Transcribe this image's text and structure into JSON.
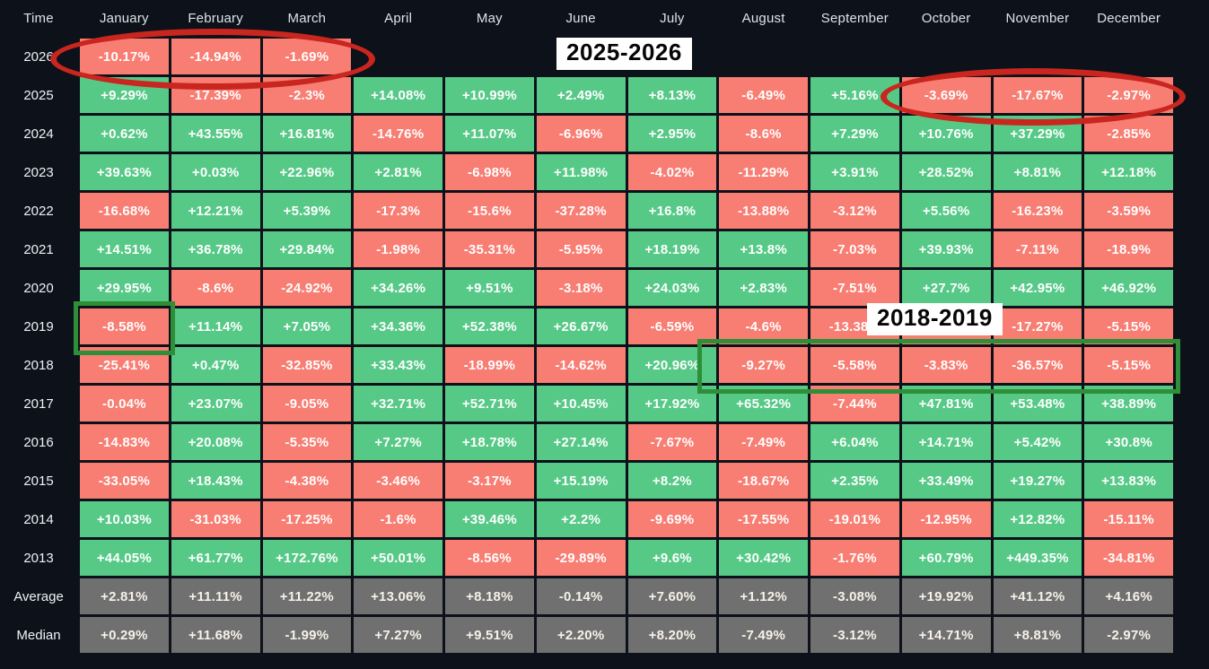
{
  "chart_data": {
    "type": "heatmap",
    "corner_label": "Time",
    "columns": [
      "January",
      "February",
      "March",
      "April",
      "May",
      "June",
      "July",
      "August",
      "September",
      "October",
      "November",
      "December"
    ],
    "rows": [
      {
        "label": "2026",
        "kind": "year",
        "values": [
          "-10.17%",
          "-14.94%",
          "-1.69%",
          "",
          "",
          "",
          "",
          "",
          "",
          "",
          "",
          ""
        ]
      },
      {
        "label": "2025",
        "kind": "year",
        "values": [
          "+9.29%",
          "-17.39%",
          "-2.3%",
          "+14.08%",
          "+10.99%",
          "+2.49%",
          "+8.13%",
          "-6.49%",
          "+5.16%",
          "-3.69%",
          "-17.67%",
          "-2.97%"
        ]
      },
      {
        "label": "2024",
        "kind": "year",
        "values": [
          "+0.62%",
          "+43.55%",
          "+16.81%",
          "-14.76%",
          "+11.07%",
          "-6.96%",
          "+2.95%",
          "-8.6%",
          "+7.29%",
          "+10.76%",
          "+37.29%",
          "-2.85%"
        ]
      },
      {
        "label": "2023",
        "kind": "year",
        "values": [
          "+39.63%",
          "+0.03%",
          "+22.96%",
          "+2.81%",
          "-6.98%",
          "+11.98%",
          "-4.02%",
          "-11.29%",
          "+3.91%",
          "+28.52%",
          "+8.81%",
          "+12.18%"
        ]
      },
      {
        "label": "2022",
        "kind": "year",
        "values": [
          "-16.68%",
          "+12.21%",
          "+5.39%",
          "-17.3%",
          "-15.6%",
          "-37.28%",
          "+16.8%",
          "-13.88%",
          "-3.12%",
          "+5.56%",
          "-16.23%",
          "-3.59%"
        ]
      },
      {
        "label": "2021",
        "kind": "year",
        "values": [
          "+14.51%",
          "+36.78%",
          "+29.84%",
          "-1.98%",
          "-35.31%",
          "-5.95%",
          "+18.19%",
          "+13.8%",
          "-7.03%",
          "+39.93%",
          "-7.11%",
          "-18.9%"
        ]
      },
      {
        "label": "2020",
        "kind": "year",
        "values": [
          "+29.95%",
          "-8.6%",
          "-24.92%",
          "+34.26%",
          "+9.51%",
          "-3.18%",
          "+24.03%",
          "+2.83%",
          "-7.51%",
          "+27.7%",
          "+42.95%",
          "+46.92%"
        ]
      },
      {
        "label": "2019",
        "kind": "year",
        "values": [
          "-8.58%",
          "+11.14%",
          "+7.05%",
          "+34.36%",
          "+52.38%",
          "+26.67%",
          "-6.59%",
          "-4.6%",
          "-13.38%",
          "",
          "-17.27%",
          "-5.15%"
        ]
      },
      {
        "label": "2018",
        "kind": "year",
        "values": [
          "-25.41%",
          "+0.47%",
          "-32.85%",
          "+33.43%",
          "-18.99%",
          "-14.62%",
          "+20.96%",
          "-9.27%",
          "-5.58%",
          "-3.83%",
          "-36.57%",
          "-5.15%"
        ]
      },
      {
        "label": "2017",
        "kind": "year",
        "values": [
          "-0.04%",
          "+23.07%",
          "-9.05%",
          "+32.71%",
          "+52.71%",
          "+10.45%",
          "+17.92%",
          "+65.32%",
          "-7.44%",
          "+47.81%",
          "+53.48%",
          "+38.89%"
        ]
      },
      {
        "label": "2016",
        "kind": "year",
        "values": [
          "-14.83%",
          "+20.08%",
          "-5.35%",
          "+7.27%",
          "+18.78%",
          "+27.14%",
          "-7.67%",
          "-7.49%",
          "+6.04%",
          "+14.71%",
          "+5.42%",
          "+30.8%"
        ]
      },
      {
        "label": "2015",
        "kind": "year",
        "values": [
          "-33.05%",
          "+18.43%",
          "-4.38%",
          "-3.46%",
          "-3.17%",
          "+15.19%",
          "+8.2%",
          "-18.67%",
          "+2.35%",
          "+33.49%",
          "+19.27%",
          "+13.83%"
        ]
      },
      {
        "label": "2014",
        "kind": "year",
        "values": [
          "+10.03%",
          "-31.03%",
          "-17.25%",
          "-1.6%",
          "+39.46%",
          "+2.2%",
          "-9.69%",
          "-17.55%",
          "-19.01%",
          "-12.95%",
          "+12.82%",
          "-15.11%"
        ]
      },
      {
        "label": "2013",
        "kind": "year",
        "values": [
          "+44.05%",
          "+61.77%",
          "+172.76%",
          "+50.01%",
          "-8.56%",
          "-29.89%",
          "+9.6%",
          "+30.42%",
          "-1.76%",
          "+60.79%",
          "+449.35%",
          "-34.81%"
        ]
      },
      {
        "label": "Average",
        "kind": "stats",
        "values": [
          "+2.81%",
          "+11.11%",
          "+11.22%",
          "+13.06%",
          "+8.18%",
          "-0.14%",
          "+7.60%",
          "+1.12%",
          "-3.08%",
          "+19.92%",
          "+41.12%",
          "+4.16%"
        ]
      },
      {
        "label": "Median",
        "kind": "stats",
        "values": [
          "+0.29%",
          "+11.68%",
          "-1.99%",
          "+7.27%",
          "+9.51%",
          "+2.20%",
          "+8.20%",
          "-7.49%",
          "-3.12%",
          "+14.71%",
          "+8.81%",
          "-2.97%"
        ]
      }
    ],
    "overrides": [
      {
        "row_label": "2019",
        "col_index": 9,
        "color": "negative"
      }
    ],
    "annotations": {
      "ellipses": [
        {
          "name": "red-ellipse-2026-jan-mar",
          "color": "#c8261f"
        },
        {
          "name": "red-ellipse-2025-oct-dec",
          "color": "#c8261f"
        }
      ],
      "rects": [
        {
          "name": "green-rect-2019-january",
          "color": "#2f8e38"
        },
        {
          "name": "green-rect-2018-aug-dec",
          "color": "#2f8e38"
        }
      ],
      "labels": [
        {
          "text": "2025-2026"
        },
        {
          "text": "2018-2019"
        }
      ]
    },
    "colors": {
      "positive": "#56c987",
      "negative": "#f87d72",
      "stats": "#707070",
      "background": "#0d111a",
      "cell_text": "#ffffff",
      "header_text": "#dde2ea",
      "annotation_red": "#c8261f",
      "annotation_green": "#2f8e38",
      "label_background": "#ffffff",
      "label_text": "#060606"
    }
  }
}
